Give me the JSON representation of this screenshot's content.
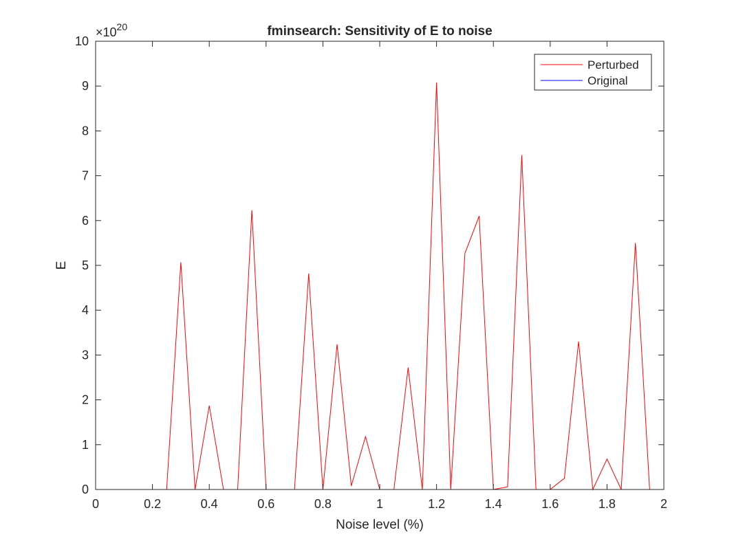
{
  "chart_data": {
    "type": "line",
    "title": "fminsearch: Sensitivity of E to noise",
    "xlabel": "Noise level (%)",
    "ylabel": "E",
    "y_exponent_label": "×10",
    "y_exponent_value": "20",
    "xlim": [
      0,
      2
    ],
    "ylim": [
      0,
      10
    ],
    "x_ticks": [
      "0",
      "0.2",
      "0.4",
      "0.6",
      "0.8",
      "1",
      "1.2",
      "1.4",
      "1.6",
      "1.8",
      "2"
    ],
    "y_ticks": [
      "0",
      "1",
      "2",
      "3",
      "4",
      "5",
      "6",
      "7",
      "8",
      "9",
      "10"
    ],
    "legend_position": "top-right",
    "grid": false,
    "series": [
      {
        "name": "Perturbed",
        "color": "#ff0000",
        "x": [
          0,
          0.05,
          0.1,
          0.15,
          0.2,
          0.25,
          0.3,
          0.35,
          0.4,
          0.45,
          0.5,
          0.55,
          0.6,
          0.65,
          0.7,
          0.75,
          0.8,
          0.85,
          0.9,
          0.95,
          1.0,
          1.05,
          1.1,
          1.15,
          1.2,
          1.25,
          1.3,
          1.35,
          1.4,
          1.45,
          1.5,
          1.55,
          1.6,
          1.65,
          1.7,
          1.75,
          1.8,
          1.85,
          1.9,
          1.95,
          2.0
        ],
        "y": [
          0,
          0,
          0,
          0,
          0,
          0,
          5.07,
          0,
          1.87,
          0,
          0,
          6.23,
          0,
          0,
          0,
          4.82,
          0,
          3.24,
          0.08,
          1.18,
          0,
          0,
          2.72,
          0,
          9.08,
          0,
          5.27,
          6.1,
          0,
          0.06,
          7.46,
          0,
          0,
          0.25,
          3.3,
          0,
          0.68,
          0,
          5.5,
          0,
          0
        ]
      },
      {
        "name": "Original",
        "color": "#0000ff",
        "x": [
          0,
          2
        ],
        "y": [
          0,
          0
        ]
      }
    ]
  }
}
